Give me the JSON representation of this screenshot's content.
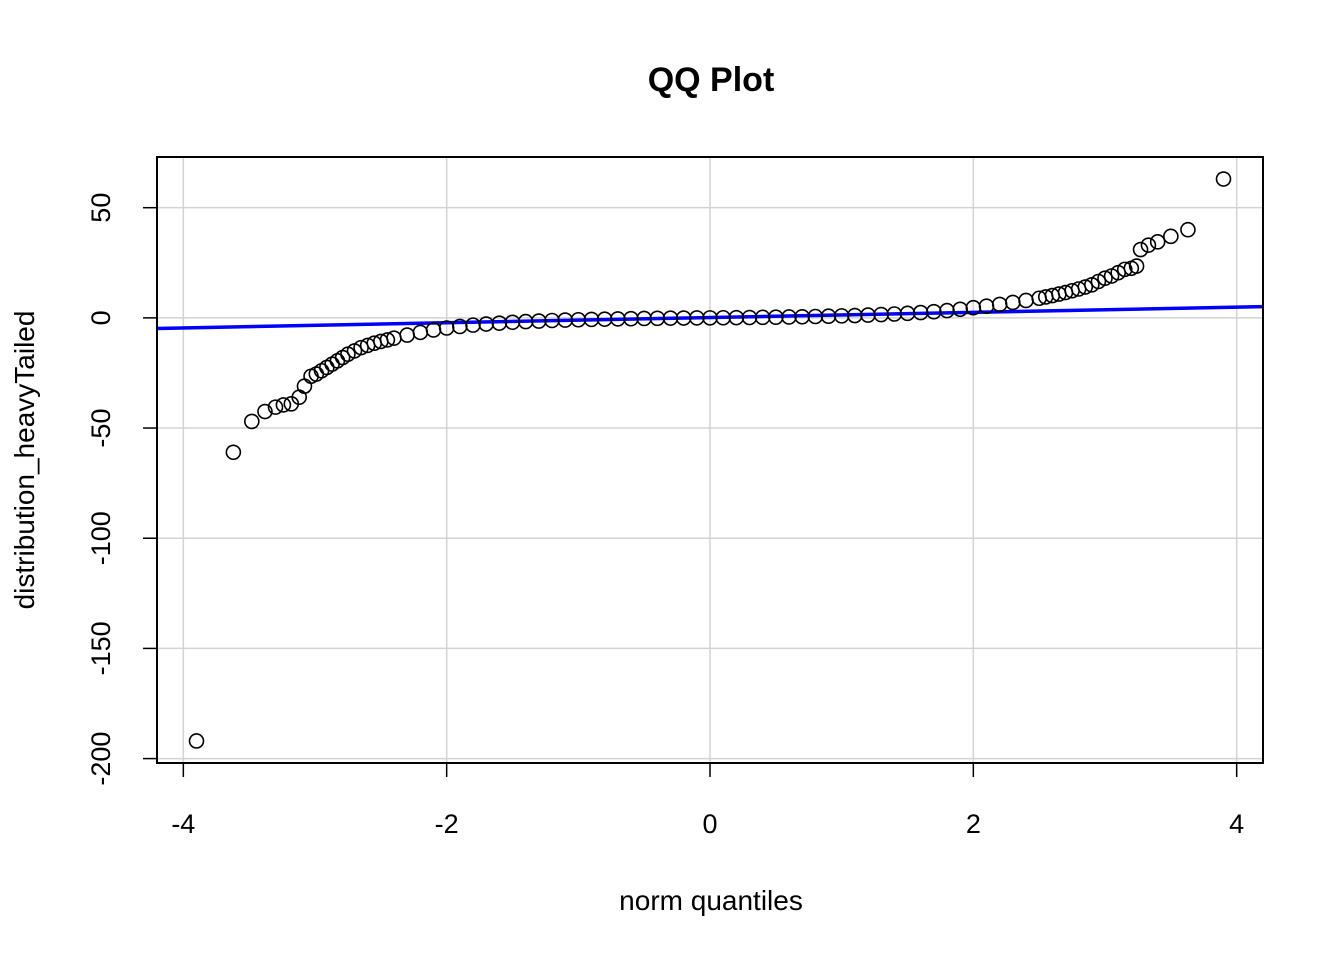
{
  "chart_data": {
    "type": "scatter",
    "title": "QQ Plot",
    "xlabel": "norm quantiles",
    "ylabel": "distribution_heavyTailed",
    "xlim": [
      -4.2,
      4.2
    ],
    "ylim": [
      -202,
      73
    ],
    "x_ticks": [
      -4,
      -2,
      0,
      2,
      4
    ],
    "y_ticks": [
      -200,
      -150,
      -100,
      -50,
      0,
      50
    ],
    "grid": true,
    "reference_line": {
      "color": "#0000ff",
      "points": [
        [
          -4.2,
          -4.8
        ],
        [
          4.2,
          5.1
        ]
      ]
    },
    "series": [
      {
        "points": [
          [
            -3.9,
            -192
          ],
          [
            -3.62,
            -61
          ],
          [
            -3.48,
            -47
          ],
          [
            -3.38,
            -42.5
          ],
          [
            -3.3,
            -40.5
          ],
          [
            -3.24,
            -39.5
          ],
          [
            -3.18,
            -39
          ],
          [
            -3.12,
            -36
          ],
          [
            -3.08,
            -31
          ],
          [
            -3.03,
            -26.5
          ],
          [
            -2.99,
            -25.5
          ],
          [
            -2.95,
            -24
          ],
          [
            -2.91,
            -22.5
          ],
          [
            -2.87,
            -21
          ],
          [
            -2.83,
            -19.5
          ],
          [
            -2.79,
            -18
          ],
          [
            -2.75,
            -16.5
          ],
          [
            -2.7,
            -15
          ],
          [
            -2.65,
            -13.5
          ],
          [
            -2.6,
            -12.5
          ],
          [
            -2.55,
            -11.5
          ],
          [
            -2.5,
            -10.7
          ],
          [
            -2.45,
            -10
          ],
          [
            -2.4,
            -9.2
          ],
          [
            -2.3,
            -7.8
          ],
          [
            -2.2,
            -6.6
          ],
          [
            -2.1,
            -5.5
          ],
          [
            -2.0,
            -4.6
          ],
          [
            -1.9,
            -3.9
          ],
          [
            -1.8,
            -3.3
          ],
          [
            -1.7,
            -2.8
          ],
          [
            -1.6,
            -2.4
          ],
          [
            -1.5,
            -2.0
          ],
          [
            -1.4,
            -1.7
          ],
          [
            -1.3,
            -1.45
          ],
          [
            -1.2,
            -1.2
          ],
          [
            -1.1,
            -1.0
          ],
          [
            -1.0,
            -0.85
          ],
          [
            -0.9,
            -0.7
          ],
          [
            -0.8,
            -0.58
          ],
          [
            -0.7,
            -0.47
          ],
          [
            -0.6,
            -0.37
          ],
          [
            -0.5,
            -0.28
          ],
          [
            -0.4,
            -0.2
          ],
          [
            -0.3,
            -0.13
          ],
          [
            -0.2,
            -0.07
          ],
          [
            -0.1,
            -0.02
          ],
          [
            0.0,
            0.0
          ],
          [
            0.1,
            0.05
          ],
          [
            0.2,
            0.1
          ],
          [
            0.3,
            0.16
          ],
          [
            0.4,
            0.23
          ],
          [
            0.5,
            0.31
          ],
          [
            0.6,
            0.4
          ],
          [
            0.7,
            0.5
          ],
          [
            0.8,
            0.62
          ],
          [
            0.9,
            0.75
          ],
          [
            1.0,
            0.9
          ],
          [
            1.1,
            1.05
          ],
          [
            1.2,
            1.25
          ],
          [
            1.3,
            1.5
          ],
          [
            1.4,
            1.75
          ],
          [
            1.5,
            2.05
          ],
          [
            1.6,
            2.4
          ],
          [
            1.7,
            2.8
          ],
          [
            1.8,
            3.3
          ],
          [
            1.9,
            3.9
          ],
          [
            2.0,
            4.6
          ],
          [
            2.1,
            5.3
          ],
          [
            2.2,
            6.1
          ],
          [
            2.3,
            7.0
          ],
          [
            2.4,
            7.9
          ],
          [
            2.5,
            8.9
          ],
          [
            2.55,
            9.5
          ],
          [
            2.6,
            10.1
          ],
          [
            2.65,
            10.8
          ],
          [
            2.7,
            11.5
          ],
          [
            2.75,
            12.3
          ],
          [
            2.8,
            13.1
          ],
          [
            2.85,
            14.0
          ],
          [
            2.9,
            15.0
          ],
          [
            2.95,
            16.5
          ],
          [
            3.0,
            18
          ],
          [
            3.05,
            19
          ],
          [
            3.1,
            20.5
          ],
          [
            3.15,
            22
          ],
          [
            3.2,
            22.5
          ],
          [
            3.24,
            23.5
          ],
          [
            3.27,
            31
          ],
          [
            3.33,
            33
          ],
          [
            3.4,
            34.5
          ],
          [
            3.5,
            37
          ],
          [
            3.63,
            40
          ],
          [
            3.9,
            63
          ]
        ]
      }
    ]
  }
}
